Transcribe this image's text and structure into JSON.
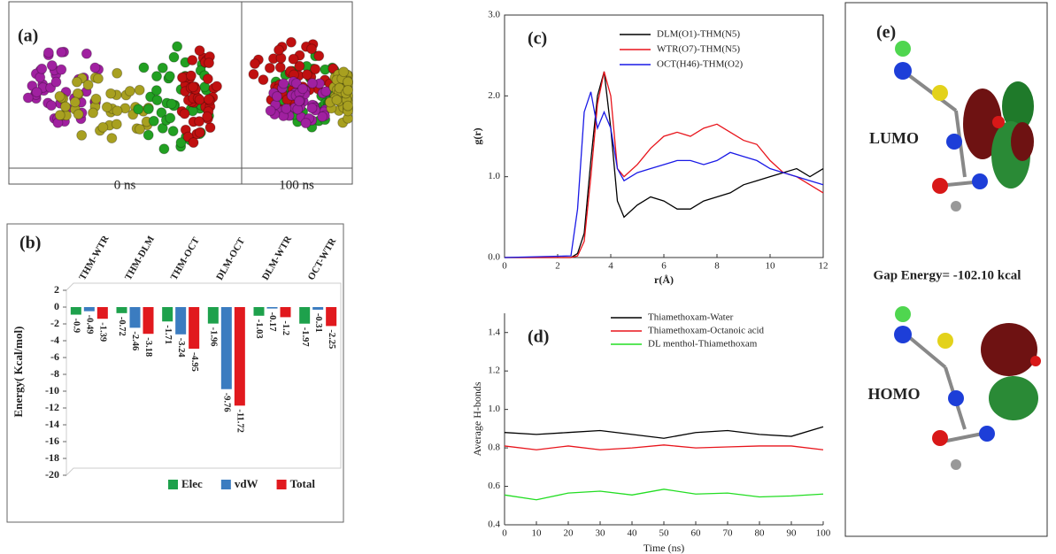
{
  "panel_a": {
    "label": "(a)",
    "captions": [
      "0 ns",
      "100 ns"
    ]
  },
  "panel_e": {
    "label": "(e)",
    "lumo": "LUMO",
    "gap": "Gap Energy= -102.10 kcal",
    "homo": "HOMO"
  },
  "chart_data": [
    {
      "type": "bar",
      "label": "(b)",
      "ylabel": "Energy( Kcal/mol)",
      "categories": [
        "THM-WTR",
        "THM-DLM",
        "THM-OCT",
        "DLM-OCT",
        "DLM-WTR",
        "OCT-WTR"
      ],
      "series": [
        {
          "name": "Elec",
          "color": "#1ea14c",
          "values": [
            -0.9,
            -0.72,
            -1.71,
            -1.96,
            -1.03,
            -1.97
          ]
        },
        {
          "name": "vdW",
          "color": "#3b7cc0",
          "values": [
            -0.49,
            -2.46,
            -3.24,
            -9.76,
            -0.17,
            -0.31
          ]
        },
        {
          "name": "Total",
          "color": "#e1191e",
          "values": [
            -1.39,
            -3.18,
            -4.95,
            -11.72,
            -1.2,
            -2.25
          ]
        }
      ],
      "ylim": [
        -20,
        2
      ],
      "yticks": [
        2,
        0,
        -2,
        -4,
        -6,
        -8,
        -10,
        -12,
        -14,
        -16,
        -18,
        -20
      ],
      "legend": "bottom"
    },
    {
      "type": "line",
      "label": "(c)",
      "xlabel": "r(Å)",
      "ylabel": "g(r)",
      "x": [
        0,
        2.5,
        2.75,
        3,
        3.25,
        3.5,
        3.75,
        4,
        4.25,
        4.5,
        5,
        5.5,
        6,
        6.5,
        7,
        7.5,
        8,
        8.5,
        9,
        9.5,
        10,
        10.5,
        11,
        11.5,
        12
      ],
      "series": [
        {
          "name": "DLM(O1)-THM(N5)",
          "color": "#000000",
          "values": [
            0,
            0,
            0.05,
            0.3,
            1.2,
            2.0,
            2.3,
            1.6,
            0.7,
            0.5,
            0.65,
            0.75,
            0.7,
            0.6,
            0.6,
            0.7,
            0.75,
            0.8,
            0.9,
            0.95,
            1.0,
            1.05,
            1.1,
            1.0,
            1.1
          ]
        },
        {
          "name": "WTR(O7)-THM(N5)",
          "color": "#e8141b",
          "values": [
            0,
            0,
            0.02,
            0.2,
            1.0,
            1.9,
            2.3,
            2.0,
            1.1,
            1.0,
            1.15,
            1.35,
            1.5,
            1.55,
            1.5,
            1.6,
            1.65,
            1.55,
            1.45,
            1.4,
            1.2,
            1.05,
            1.0,
            0.9,
            0.8
          ]
        },
        {
          "name": "OCT(H46)-THM(O2)",
          "color": "#1a1ae6",
          "values": [
            0,
            0.02,
            0.6,
            1.8,
            2.05,
            1.6,
            1.8,
            1.6,
            1.1,
            0.95,
            1.05,
            1.1,
            1.15,
            1.2,
            1.2,
            1.15,
            1.2,
            1.3,
            1.25,
            1.2,
            1.1,
            1.05,
            1.0,
            0.95,
            0.9
          ]
        }
      ],
      "xlim": [
        0,
        12
      ],
      "ylim": [
        0,
        3
      ],
      "xticks": [
        0,
        2,
        4,
        6,
        8,
        10,
        12
      ],
      "yticks": [
        {
          "value": 0,
          "label": "0.0"
        },
        {
          "value": 1,
          "label": "1.0"
        },
        {
          "value": 2,
          "label": "2.0"
        },
        {
          "value": 3,
          "label": "3.0"
        }
      ],
      "legend": "upper right"
    },
    {
      "type": "line",
      "label": "(d)",
      "xlabel": "Time (ns)",
      "ylabel": "Average H-bonds",
      "x": [
        0,
        10,
        20,
        30,
        40,
        50,
        60,
        70,
        80,
        90,
        100
      ],
      "series": [
        {
          "name": "Thiamethoxam-Water",
          "color": "#000000",
          "values": [
            0.88,
            0.87,
            0.88,
            0.89,
            0.87,
            0.85,
            0.88,
            0.89,
            0.87,
            0.86,
            0.91
          ]
        },
        {
          "name": "Thiamethoxam-Octanoic acid",
          "color": "#e8141b",
          "values": [
            0.81,
            0.79,
            0.81,
            0.79,
            0.8,
            0.815,
            0.8,
            0.805,
            0.81,
            0.81,
            0.79
          ]
        },
        {
          "name": "DL menthol-Thiamethoxam",
          "color": "#22dd22",
          "values": [
            0.555,
            0.53,
            0.565,
            0.575,
            0.555,
            0.585,
            0.56,
            0.565,
            0.545,
            0.55,
            0.56
          ]
        }
      ],
      "xlim": [
        0,
        100
      ],
      "ylim": [
        0.4,
        1.5
      ],
      "xticks": [
        0,
        10,
        20,
        30,
        40,
        50,
        60,
        70,
        80,
        90,
        100
      ],
      "yticks": [
        0.4,
        0.6,
        0.8,
        {
          "value": 1,
          "label": "1.0"
        },
        1.2,
        1.4
      ],
      "legend": "upper center"
    }
  ]
}
